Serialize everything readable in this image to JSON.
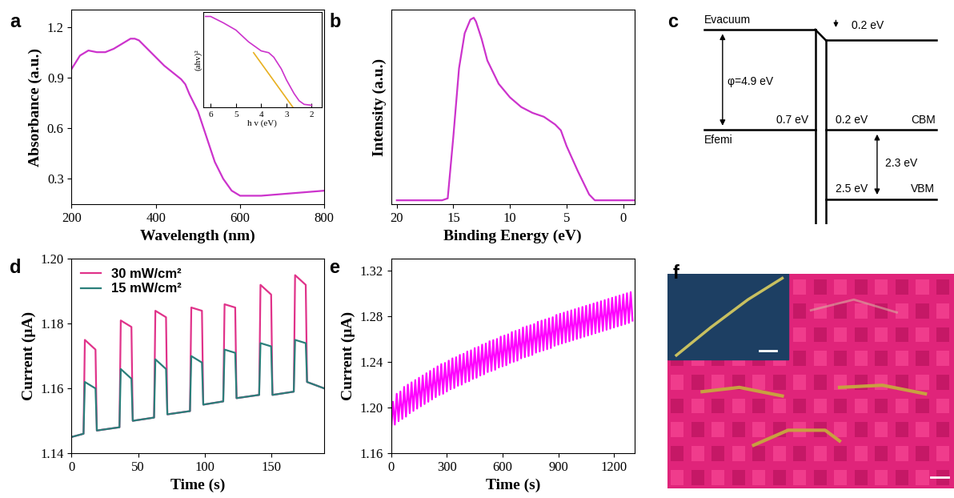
{
  "chart_data": [
    {
      "panel": "a",
      "type": "line",
      "x_label": "Wavelength (nm)",
      "y_label": "Absorbance (a.u.)",
      "xlim": [
        200,
        800
      ],
      "xticks": [
        200,
        400,
        600,
        800
      ],
      "ylim": [
        0.15,
        1.3
      ],
      "yticks": [
        0.3,
        0.6,
        0.9,
        1.2
      ],
      "series": [
        {
          "color": "#cc33cc",
          "x": [
            200,
            220,
            240,
            260,
            280,
            300,
            320,
            340,
            350,
            360,
            380,
            400,
            420,
            440,
            460,
            470,
            480,
            500,
            520,
            540,
            560,
            580,
            600,
            650,
            700,
            750,
            800
          ],
          "values": [
            0.95,
            1.03,
            1.06,
            1.05,
            1.05,
            1.07,
            1.1,
            1.13,
            1.13,
            1.12,
            1.07,
            1.02,
            0.97,
            0.93,
            0.89,
            0.86,
            0.8,
            0.7,
            0.55,
            0.4,
            0.3,
            0.23,
            0.2,
            0.2,
            0.21,
            0.22,
            0.23
          ]
        }
      ]
    },
    {
      "panel": "a",
      "type": "line",
      "x_label": "h v (eV)",
      "y_label": "(ahv)²",
      "tick_labels": "x",
      "xlim": [
        6.3,
        1.6
      ],
      "xticks": [
        6,
        5,
        4,
        3,
        2
      ],
      "ylim": [
        0,
        1.05
      ],
      "series": [
        {
          "color": "#cc33cc",
          "x": [
            6.2,
            6.0,
            5.5,
            5.0,
            4.5,
            4.0,
            3.7,
            3.5,
            3.2,
            3.0,
            2.7,
            2.5,
            2.3,
            2.0
          ],
          "values": [
            1.0,
            1.0,
            0.93,
            0.85,
            0.72,
            0.62,
            0.6,
            0.55,
            0.42,
            0.3,
            0.15,
            0.07,
            0.03,
            0.02
          ]
        },
        {
          "color": "#e8b020",
          "x": [
            4.3,
            2.75
          ],
          "values": [
            0.6,
            0.0
          ]
        }
      ]
    },
    {
      "panel": "b",
      "type": "line",
      "x_label": "Binding Energy (eV)",
      "y_label": "Intensity (a.u.)",
      "tick_labels": "x",
      "xlim": [
        20.5,
        -1
      ],
      "xticks": [
        20,
        15,
        10,
        5,
        0
      ],
      "ylim": [
        0,
        1.0
      ],
      "series": [
        {
          "color": "#cc33cc",
          "x": [
            20,
            16,
            15.5,
            15,
            14.5,
            14,
            13.5,
            13.2,
            13,
            12.5,
            12,
            11,
            10,
            9,
            8,
            7,
            6,
            5.5,
            5,
            4,
            3,
            2.5,
            0,
            -1
          ],
          "values": [
            0.02,
            0.02,
            0.03,
            0.35,
            0.7,
            0.88,
            0.95,
            0.96,
            0.94,
            0.85,
            0.74,
            0.62,
            0.55,
            0.5,
            0.47,
            0.45,
            0.41,
            0.38,
            0.3,
            0.17,
            0.05,
            0.02,
            0.02,
            0.02
          ]
        }
      ]
    },
    {
      "panel": "d",
      "type": "line",
      "x_label": "Time (s)",
      "y_label": "Current (μA)",
      "legend": "upper left",
      "xlim": [
        0,
        190
      ],
      "xticks": [
        0,
        50,
        100,
        150
      ],
      "ylim": [
        1.14,
        1.2
      ],
      "yticks": [
        1.14,
        1.16,
        1.18,
        {
          "value": 1.2,
          "label": "1.20"
        }
      ],
      "series": [
        {
          "name": "30 mW/cm²",
          "color": "#e0338a",
          "x": [
            0,
            9,
            10,
            18,
            19,
            36,
            37,
            45,
            46,
            62,
            63,
            71,
            72,
            89,
            90,
            98,
            99,
            114,
            115,
            123,
            124,
            141,
            142,
            150,
            151,
            167,
            168,
            176,
            177,
            190
          ],
          "values": [
            1.145,
            1.146,
            1.175,
            1.172,
            1.147,
            1.148,
            1.181,
            1.179,
            1.15,
            1.151,
            1.184,
            1.182,
            1.152,
            1.153,
            1.185,
            1.184,
            1.155,
            1.156,
            1.186,
            1.185,
            1.157,
            1.158,
            1.192,
            1.189,
            1.158,
            1.159,
            1.195,
            1.192,
            1.162,
            1.16
          ]
        },
        {
          "name": "15 mW/cm²",
          "color": "#2a7f7a",
          "x": [
            0,
            9,
            10,
            18,
            19,
            36,
            37,
            45,
            46,
            62,
            63,
            71,
            72,
            89,
            90,
            98,
            99,
            114,
            115,
            123,
            124,
            141,
            142,
            150,
            151,
            167,
            168,
            176,
            177,
            190
          ],
          "values": [
            1.145,
            1.146,
            1.162,
            1.16,
            1.147,
            1.148,
            1.166,
            1.163,
            1.15,
            1.151,
            1.169,
            1.166,
            1.152,
            1.153,
            1.17,
            1.168,
            1.155,
            1.156,
            1.172,
            1.171,
            1.157,
            1.158,
            1.174,
            1.173,
            1.158,
            1.159,
            1.175,
            1.174,
            1.162,
            1.16
          ]
        }
      ]
    },
    {
      "panel": "e",
      "type": "line",
      "x_label": "Time (s)",
      "y_label": "Current (μA)",
      "xlim": [
        0,
        1310
      ],
      "xticks": [
        0,
        300,
        600,
        900,
        1200
      ],
      "ylim": [
        1.16,
        1.33
      ],
      "yticks": [
        1.16,
        {
          "value": 1.2,
          "label": "1.20"
        },
        1.24,
        1.28,
        1.32
      ],
      "series": [
        {
          "color": "#ff00ff",
          "x": [
            0,
            10,
            20,
            30,
            40,
            50,
            60,
            70,
            80,
            90,
            100,
            110,
            120,
            130,
            140,
            150,
            160,
            170,
            180,
            190,
            200,
            210,
            220,
            230,
            240,
            250,
            260,
            270,
            280,
            290,
            300,
            310,
            320,
            330,
            340,
            350,
            360,
            370,
            380,
            390,
            400,
            410,
            420,
            430,
            440,
            450,
            460,
            470,
            480,
            490,
            500,
            510,
            520,
            530,
            540,
            550,
            560,
            570,
            580,
            590,
            600,
            610,
            620,
            630,
            640,
            650,
            660,
            670,
            680,
            690,
            700,
            710,
            720,
            730,
            740,
            750,
            760,
            770,
            780,
            790,
            800,
            810,
            820,
            830,
            840,
            850,
            860,
            870,
            880,
            890,
            900,
            910,
            920,
            930,
            940,
            950,
            960,
            970,
            980,
            990,
            1000,
            1010,
            1020,
            1030,
            1040,
            1050,
            1060,
            1070,
            1080,
            1090,
            1100,
            1110,
            1120,
            1130,
            1140,
            1150,
            1160,
            1170,
            1180,
            1190,
            1200,
            1210,
            1220,
            1230,
            1240,
            1250,
            1260,
            1270,
            1280,
            1290,
            1300
          ],
          "values": [
            1.18,
            1.205,
            1.185,
            1.212,
            1.188,
            1.214,
            1.19,
            1.218,
            1.192,
            1.22,
            1.195,
            1.222,
            1.197,
            1.224,
            1.199,
            1.226,
            1.201,
            1.228,
            1.203,
            1.23,
            1.205,
            1.232,
            1.207,
            1.234,
            1.209,
            1.236,
            1.211,
            1.238,
            1.212,
            1.239,
            1.214,
            1.241,
            1.216,
            1.243,
            1.217,
            1.244,
            1.219,
            1.246,
            1.22,
            1.247,
            1.222,
            1.249,
            1.223,
            1.25,
            1.225,
            1.252,
            1.226,
            1.253,
            1.228,
            1.255,
            1.229,
            1.256,
            1.231,
            1.258,
            1.232,
            1.259,
            1.233,
            1.26,
            1.235,
            1.262,
            1.236,
            1.263,
            1.237,
            1.264,
            1.239,
            1.266,
            1.24,
            1.267,
            1.241,
            1.268,
            1.243,
            1.27,
            1.244,
            1.271,
            1.245,
            1.272,
            1.246,
            1.273,
            1.248,
            1.275,
            1.249,
            1.276,
            1.25,
            1.277,
            1.251,
            1.278,
            1.252,
            1.279,
            1.254,
            1.281,
            1.255,
            1.282,
            1.256,
            1.283,
            1.257,
            1.284,
            1.258,
            1.285,
            1.259,
            1.286,
            1.26,
            1.287,
            1.261,
            1.288,
            1.262,
            1.289,
            1.263,
            1.29,
            1.264,
            1.291,
            1.265,
            1.292,
            1.266,
            1.293,
            1.267,
            1.294,
            1.268,
            1.295,
            1.269,
            1.296,
            1.27,
            1.297,
            1.271,
            1.298,
            1.272,
            1.299,
            1.273,
            1.3,
            1.274,
            1.301,
            1.276
          ]
        }
      ]
    }
  ],
  "band_diagram": {
    "panel": "c",
    "labels": {
      "vacuum": "Evacuum",
      "work_function": "φ=4.9 eV",
      "fermi": "Efemi",
      "fermi_offset": "0.7 eV",
      "vacuum_offset": "0.2 eV",
      "cbm_offset": "0.2 eV",
      "cbm": "CBM",
      "band_gap": "2.3 eV",
      "vbm_offset": "2.5 eV",
      "vbm": "VBM"
    }
  },
  "photo": {
    "panel": "f"
  }
}
